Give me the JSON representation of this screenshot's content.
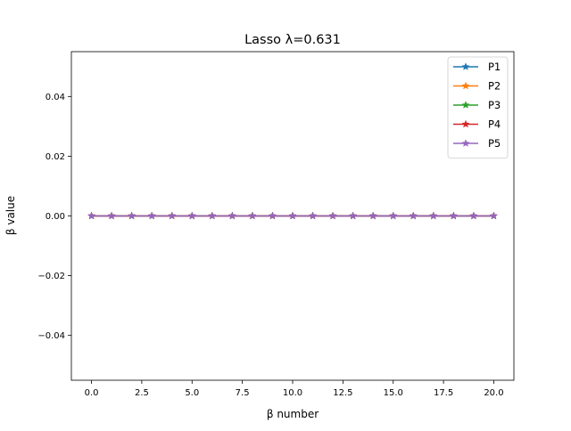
{
  "chart_data": {
    "type": "line",
    "title": "Lasso λ=0.631",
    "xlabel": "β number",
    "ylabel": "β value",
    "xlim": [
      -1.0,
      21.0
    ],
    "ylim": [
      -0.055,
      0.055
    ],
    "grid": false,
    "legend_position": "top-right",
    "x": [
      0,
      1,
      2,
      3,
      4,
      5,
      6,
      7,
      8,
      9,
      10,
      11,
      12,
      13,
      14,
      15,
      16,
      17,
      18,
      19,
      20
    ],
    "x_ticks": [
      0.0,
      2.5,
      5.0,
      7.5,
      10.0,
      12.5,
      15.0,
      17.5,
      20.0
    ],
    "x_tick_labels": [
      "0.0",
      "2.5",
      "5.0",
      "7.5",
      "10.0",
      "12.5",
      "15.0",
      "17.5",
      "20.0"
    ],
    "y_ticks": [
      -0.04,
      -0.02,
      0.0,
      0.02,
      0.04
    ],
    "y_tick_labels": [
      "−0.04",
      "−0.02",
      "0.00",
      "0.02",
      "0.04"
    ],
    "marker": "star",
    "series": [
      {
        "name": "P1",
        "color": "#1f77b4",
        "values": [
          0,
          0,
          0,
          0,
          0,
          0,
          0,
          0,
          0,
          0,
          0,
          0,
          0,
          0,
          0,
          0,
          0,
          0,
          0,
          0,
          0
        ]
      },
      {
        "name": "P2",
        "color": "#ff7f0e",
        "values": [
          0,
          0,
          0,
          0,
          0,
          0,
          0,
          0,
          0,
          0,
          0,
          0,
          0,
          0,
          0,
          0,
          0,
          0,
          0,
          0,
          0
        ]
      },
      {
        "name": "P3",
        "color": "#2ca02c",
        "values": [
          0,
          0,
          0,
          0,
          0,
          0,
          0,
          0,
          0,
          0,
          0,
          0,
          0,
          0,
          0,
          0,
          0,
          0,
          0,
          0,
          0
        ]
      },
      {
        "name": "P4",
        "color": "#d62728",
        "values": [
          0,
          0,
          0,
          0,
          0,
          0,
          0,
          0,
          0,
          0,
          0,
          0,
          0,
          0,
          0,
          0,
          0,
          0,
          0,
          0,
          0
        ]
      },
      {
        "name": "P5",
        "color": "#9467bd",
        "values": [
          0,
          0,
          0,
          0,
          0,
          0,
          0,
          0,
          0,
          0,
          0,
          0,
          0,
          0,
          0,
          0,
          0,
          0,
          0,
          0,
          0
        ]
      }
    ]
  }
}
